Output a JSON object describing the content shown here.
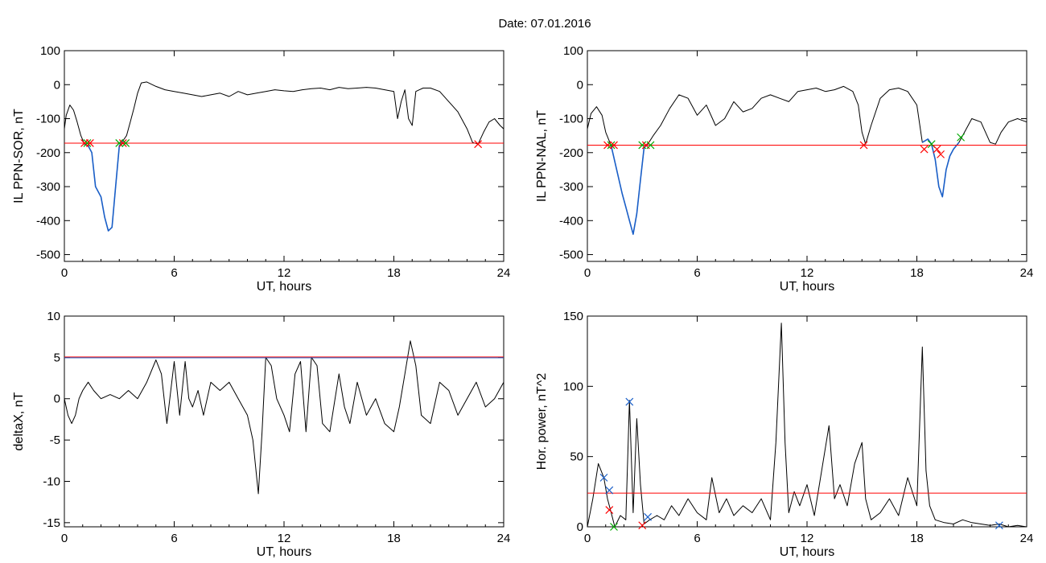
{
  "figure": {
    "title": "Date:  07.01.2016"
  },
  "chart_data": [
    {
      "id": "sor",
      "type": "line",
      "xlabel": "UT, hours",
      "ylabel": "IL PPN-SOR, nT",
      "xlim": [
        0,
        24
      ],
      "ylim": [
        -520,
        100
      ],
      "xticks": [
        0,
        6,
        12,
        18,
        24
      ],
      "yticks": [
        -500,
        -400,
        -300,
        -200,
        -100,
        0,
        100
      ],
      "grid": false,
      "threshold": {
        "y": -172,
        "color": "#ff0000"
      },
      "series": [
        {
          "role": "signal",
          "color": "#000000",
          "x": [
            0,
            0.1,
            0.3,
            0.5,
            0.7,
            0.9,
            1.1,
            1.3,
            1.5,
            1.7,
            2.0,
            2.2,
            2.4,
            2.6,
            2.8,
            3.0,
            3.2,
            3.4,
            3.6,
            3.8,
            4.0,
            4.2,
            4.5,
            5.0,
            5.5,
            6.0,
            6.5,
            7.0,
            7.5,
            8.0,
            8.5,
            9.0,
            9.5,
            10.0,
            10.5,
            11.0,
            11.5,
            12.0,
            12.5,
            13.0,
            13.5,
            14.0,
            14.5,
            15.0,
            15.5,
            16.0,
            16.5,
            17.0,
            17.5,
            18.0,
            18.2,
            18.4,
            18.6,
            18.8,
            19.0,
            19.2,
            19.4,
            19.6,
            20.0,
            20.5,
            21.0,
            21.5,
            22.0,
            22.3,
            22.6,
            22.9,
            23.2,
            23.5,
            23.8,
            24.0
          ],
          "y": [
            -130,
            -90,
            -60,
            -75,
            -110,
            -150,
            -175,
            -180,
            -200,
            -300,
            -330,
            -390,
            -430,
            -420,
            -300,
            -180,
            -165,
            -150,
            -110,
            -70,
            -25,
            5,
            8,
            -5,
            -15,
            -20,
            -25,
            -30,
            -35,
            -30,
            -25,
            -35,
            -20,
            -30,
            -25,
            -20,
            -15,
            -18,
            -20,
            -15,
            -12,
            -10,
            -15,
            -8,
            -12,
            -10,
            -8,
            -10,
            -15,
            -20,
            -100,
            -50,
            -15,
            -100,
            -120,
            -20,
            -15,
            -10,
            -10,
            -20,
            -50,
            -80,
            -130,
            -170,
            -175,
            -140,
            -110,
            -100,
            -120,
            -130
          ]
        },
        {
          "role": "event",
          "color": "#1a5fc8",
          "x": [
            1.1,
            1.3,
            1.5,
            1.7,
            2.0,
            2.2,
            2.4,
            2.6,
            2.8,
            3.0,
            3.2
          ],
          "y": [
            -175,
            -180,
            -200,
            -300,
            -330,
            -390,
            -430,
            -420,
            -300,
            -180,
            -165
          ]
        }
      ],
      "markers": [
        {
          "x": 1.1,
          "y": -172,
          "color": "#ff0000"
        },
        {
          "x": 1.25,
          "y": -172,
          "color": "#00aa00"
        },
        {
          "x": 1.4,
          "y": -172,
          "color": "#ff0000"
        },
        {
          "x": 3.0,
          "y": -172,
          "color": "#00aa00"
        },
        {
          "x": 3.2,
          "y": -172,
          "color": "#ff0000"
        },
        {
          "x": 3.35,
          "y": -172,
          "color": "#00aa00"
        },
        {
          "x": 22.6,
          "y": -175,
          "color": "#ff0000"
        }
      ]
    },
    {
      "id": "nal",
      "type": "line",
      "xlabel": "UT, hours",
      "ylabel": "IL PPN-NAL, nT",
      "xlim": [
        0,
        24
      ],
      "ylim": [
        -520,
        100
      ],
      "xticks": [
        0,
        6,
        12,
        18,
        24
      ],
      "yticks": [
        -500,
        -400,
        -300,
        -200,
        -100,
        0,
        100
      ],
      "grid": false,
      "threshold": {
        "y": -178,
        "color": "#ff0000"
      },
      "series": [
        {
          "role": "signal",
          "color": "#000000",
          "x": [
            0,
            0.2,
            0.5,
            0.8,
            1.0,
            1.3,
            1.6,
            1.9,
            2.1,
            2.3,
            2.5,
            2.7,
            2.9,
            3.1,
            3.3,
            3.6,
            4.0,
            4.5,
            5.0,
            5.5,
            6.0,
            6.5,
            7.0,
            7.5,
            8.0,
            8.5,
            9.0,
            9.5,
            10.0,
            10.5,
            11.0,
            11.5,
            12.0,
            12.5,
            13.0,
            13.5,
            14.0,
            14.5,
            14.8,
            15.0,
            15.2,
            15.5,
            16.0,
            16.5,
            17.0,
            17.5,
            18.0,
            18.3,
            18.6,
            18.8,
            19.0,
            19.2,
            19.4,
            19.6,
            19.8,
            20.0,
            20.3,
            20.6,
            21.0,
            21.5,
            22.0,
            22.3,
            22.6,
            23.0,
            23.5,
            24.0
          ],
          "y": [
            -130,
            -85,
            -65,
            -90,
            -140,
            -180,
            -250,
            -320,
            -360,
            -400,
            -440,
            -380,
            -280,
            -185,
            -175,
            -150,
            -120,
            -70,
            -30,
            -40,
            -90,
            -60,
            -120,
            -100,
            -50,
            -80,
            -70,
            -40,
            -30,
            -40,
            -50,
            -20,
            -15,
            -10,
            -20,
            -15,
            -5,
            -20,
            -60,
            -140,
            -175,
            -120,
            -40,
            -15,
            -10,
            -20,
            -60,
            -170,
            -160,
            -175,
            -220,
            -300,
            -330,
            -250,
            -210,
            -190,
            -170,
            -140,
            -100,
            -110,
            -170,
            -175,
            -140,
            -110,
            -100,
            -110
          ]
        },
        {
          "role": "event",
          "color": "#1a5fc8",
          "x": [
            1.3,
            1.6,
            1.9,
            2.1,
            2.3,
            2.5,
            2.7,
            2.9,
            3.1,
            3.3
          ],
          "y": [
            -180,
            -250,
            -320,
            -360,
            -400,
            -440,
            -380,
            -280,
            -185,
            -175
          ]
        },
        {
          "role": "event",
          "color": "#1a5fc8",
          "x": [
            18.3,
            18.6,
            18.8,
            19.0,
            19.2,
            19.4,
            19.6,
            19.8,
            20.0,
            20.3
          ],
          "y": [
            -170,
            -160,
            -175,
            -220,
            -300,
            -330,
            -250,
            -210,
            -190,
            -170
          ]
        }
      ],
      "markers": [
        {
          "x": 1.1,
          "y": -178,
          "color": "#ff0000"
        },
        {
          "x": 1.3,
          "y": -178,
          "color": "#00aa00"
        },
        {
          "x": 1.45,
          "y": -178,
          "color": "#ff0000"
        },
        {
          "x": 3.0,
          "y": -178,
          "color": "#00aa00"
        },
        {
          "x": 3.2,
          "y": -178,
          "color": "#ff0000"
        },
        {
          "x": 3.45,
          "y": -178,
          "color": "#00aa00"
        },
        {
          "x": 15.1,
          "y": -178,
          "color": "#ff0000"
        },
        {
          "x": 18.4,
          "y": -190,
          "color": "#ff0000"
        },
        {
          "x": 18.8,
          "y": -175,
          "color": "#00aa00"
        },
        {
          "x": 19.1,
          "y": -190,
          "color": "#ff0000"
        },
        {
          "x": 19.3,
          "y": -205,
          "color": "#ff0000"
        },
        {
          "x": 20.4,
          "y": -155,
          "color": "#00aa00"
        }
      ]
    },
    {
      "id": "deltax",
      "type": "line",
      "xlabel": "UT, hours",
      "ylabel": "deltaX, nT",
      "xlim": [
        0,
        24
      ],
      "ylim": [
        -15.5,
        10
      ],
      "xticks": [
        0,
        6,
        12,
        18,
        24
      ],
      "yticks": [
        -15,
        -10,
        -5,
        0,
        5,
        10
      ],
      "grid": false,
      "thresholds": [
        {
          "y": 5.05,
          "color": "#ff0000"
        },
        {
          "y": 4.95,
          "color": "#1a5fc8"
        }
      ],
      "series": [
        {
          "role": "signal",
          "color": "#000000",
          "x": [
            0,
            0.2,
            0.4,
            0.6,
            0.8,
            1.0,
            1.3,
            1.6,
            2.0,
            2.5,
            3.0,
            3.5,
            4.0,
            4.5,
            5.0,
            5.3,
            5.6,
            6.0,
            6.3,
            6.6,
            6.8,
            7.0,
            7.3,
            7.6,
            8.0,
            8.5,
            9.0,
            9.5,
            10.0,
            10.3,
            10.6,
            10.8,
            11.0,
            11.3,
            11.6,
            12.0,
            12.3,
            12.6,
            12.9,
            13.2,
            13.5,
            13.8,
            14.1,
            14.5,
            15.0,
            15.3,
            15.6,
            16.0,
            16.5,
            17.0,
            17.5,
            18.0,
            18.3,
            18.6,
            18.9,
            19.2,
            19.5,
            20.0,
            20.5,
            21.0,
            21.5,
            22.0,
            22.5,
            23.0,
            23.5,
            24.0
          ],
          "y": [
            0,
            -2,
            -3,
            -2,
            0,
            1,
            2,
            1,
            0,
            0.5,
            0,
            1,
            0,
            2,
            4.7,
            3,
            -3,
            4.5,
            -2,
            4.5,
            0,
            -1,
            1,
            -2,
            2,
            1,
            2,
            0,
            -2,
            -5,
            -11.5,
            -4,
            5,
            4,
            0,
            -2,
            -4,
            3,
            4.5,
            -4,
            5,
            4,
            -3,
            -4,
            3,
            -1,
            -3,
            2,
            -2,
            0,
            -3,
            -4,
            -1,
            3,
            7,
            4,
            -2,
            -3,
            2,
            1,
            -2,
            0,
            2,
            -1,
            0,
            2
          ]
        }
      ],
      "markers": []
    },
    {
      "id": "hpow",
      "type": "line",
      "xlabel": "UT, hours",
      "ylabel": "Hor. power, nT^2",
      "xlim": [
        0,
        24
      ],
      "ylim": [
        0,
        150
      ],
      "xticks": [
        0,
        6,
        12,
        18,
        24
      ],
      "yticks": [
        0,
        50,
        100,
        150
      ],
      "grid": false,
      "threshold": {
        "y": 24,
        "color": "#ff0000"
      },
      "series": [
        {
          "role": "signal",
          "color": "#000000",
          "x": [
            0,
            0.3,
            0.6,
            0.9,
            1.1,
            1.3,
            1.5,
            1.8,
            2.1,
            2.3,
            2.5,
            2.7,
            2.9,
            3.1,
            3.4,
            3.8,
            4.2,
            4.6,
            5.0,
            5.5,
            6.0,
            6.5,
            6.8,
            7.2,
            7.6,
            8.0,
            8.5,
            9.0,
            9.5,
            10.0,
            10.3,
            10.6,
            10.8,
            11.0,
            11.3,
            11.6,
            12.0,
            12.4,
            12.8,
            13.2,
            13.5,
            13.8,
            14.2,
            14.6,
            15.0,
            15.2,
            15.5,
            16.0,
            16.5,
            17.0,
            17.5,
            18.0,
            18.3,
            18.5,
            18.7,
            19.0,
            19.5,
            20.0,
            20.5,
            21.0,
            21.5,
            22.0,
            22.5,
            23.0,
            23.5,
            24.0
          ],
          "y": [
            0,
            20,
            45,
            35,
            20,
            10,
            0,
            8,
            5,
            90,
            10,
            77,
            30,
            2,
            5,
            8,
            5,
            15,
            8,
            20,
            10,
            5,
            35,
            10,
            20,
            8,
            15,
            10,
            20,
            5,
            60,
            145,
            60,
            10,
            25,
            15,
            30,
            8,
            40,
            72,
            20,
            30,
            15,
            45,
            60,
            20,
            5,
            10,
            20,
            8,
            35,
            15,
            128,
            40,
            15,
            5,
            3,
            2,
            5,
            3,
            2,
            1,
            2,
            0,
            1,
            0
          ]
        }
      ],
      "markers": [
        {
          "x": 0.9,
          "y": 35,
          "color": "#1a5fc8"
        },
        {
          "x": 1.2,
          "y": 26,
          "color": "#1a5fc8"
        },
        {
          "x": 1.2,
          "y": 12,
          "color": "#ff0000"
        },
        {
          "x": 1.45,
          "y": 0,
          "color": "#00aa00"
        },
        {
          "x": 2.3,
          "y": 89,
          "color": "#1a5fc8"
        },
        {
          "x": 3.0,
          "y": 1,
          "color": "#ff0000"
        },
        {
          "x": 3.3,
          "y": 7,
          "color": "#1a5fc8"
        },
        {
          "x": 22.5,
          "y": 1,
          "color": "#1a5fc8"
        }
      ]
    }
  ]
}
